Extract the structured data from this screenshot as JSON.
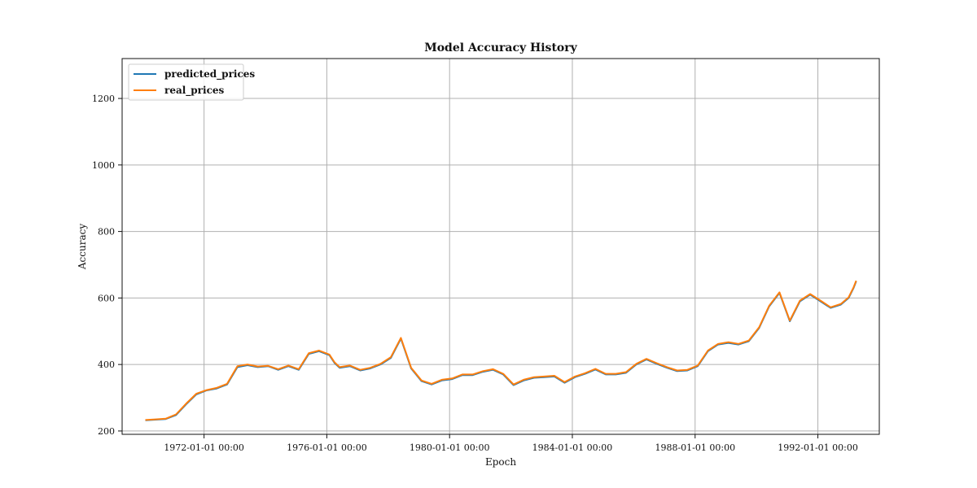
{
  "chart_data": {
    "type": "line",
    "title": "Model Accuracy History",
    "xlabel": "Epoch",
    "ylabel": "Accuracy",
    "x_axis": "date",
    "xlim": [
      "1969-05-01",
      "1994-01-01"
    ],
    "ylim": [
      190,
      1320
    ],
    "x_ticks": [
      "1972-01-01",
      "1976-01-01",
      "1980-01-01",
      "1984-01-01",
      "1988-01-01",
      "1992-01-01"
    ],
    "x_tick_labels": [
      "1972-01-01 00:00",
      "1976-01-01 00:00",
      "1980-01-01 00:00",
      "1984-01-01 00:00",
      "1988-01-01 00:00",
      "1992-01-01 00:00"
    ],
    "y_ticks": [
      200,
      400,
      600,
      800,
      1000,
      1200
    ],
    "y_tick_labels": [
      "200",
      "400",
      "600",
      "800",
      "1000",
      "1200"
    ],
    "grid": true,
    "legend_position": "top-left",
    "x": [
      "1970-02-01",
      "1970-06-01",
      "1970-10-01",
      "1971-02-01",
      "1971-06-01",
      "1971-10-01",
      "1972-02-01",
      "1972-06-01",
      "1972-10-01",
      "1973-02-01",
      "1973-06-01",
      "1973-10-01",
      "1974-02-01",
      "1974-06-01",
      "1974-10-01",
      "1975-02-01",
      "1975-06-01",
      "1975-10-01",
      "1976-02-01",
      "1976-04-01",
      "1976-06-01",
      "1976-10-01",
      "1977-02-01",
      "1977-06-01",
      "1977-10-01",
      "1978-02-01",
      "1978-06-01",
      "1978-10-01",
      "1979-02-01",
      "1979-06-01",
      "1979-10-01",
      "1980-02-01",
      "1980-06-01",
      "1980-10-01",
      "1981-02-01",
      "1981-06-01",
      "1981-10-01",
      "1982-02-01",
      "1982-06-01",
      "1982-10-01",
      "1983-02-01",
      "1983-06-01",
      "1983-10-01",
      "1984-02-01",
      "1984-06-01",
      "1984-10-01",
      "1985-02-01",
      "1985-06-01",
      "1985-10-01",
      "1986-02-01",
      "1986-06-01",
      "1986-10-01",
      "1987-02-01",
      "1987-06-01",
      "1987-10-01",
      "1988-02-01",
      "1988-06-01",
      "1988-10-01",
      "1989-02-01",
      "1989-06-01",
      "1989-10-01",
      "1990-02-01",
      "1990-06-01",
      "1990-10-01",
      "1991-02-01",
      "1991-06-01",
      "1991-10-01",
      "1992-02-01",
      "1992-06-01",
      "1992-10-01",
      "1993-01-01",
      "1993-03-01",
      "1993-04-01"
    ],
    "series": [
      {
        "name": "predicted_prices",
        "color": "#1f77b4",
        "values": [
          232,
          234,
          236,
          248,
          280,
          310,
          322,
          328,
          340,
          392,
          398,
          392,
          395,
          384,
          395,
          384,
          432,
          440,
          428,
          405,
          390,
          395,
          382,
          388,
          400,
          420,
          478,
          388,
          350,
          340,
          352,
          356,
          368,
          368,
          378,
          384,
          370,
          338,
          352,
          360,
          362,
          364,
          345,
          362,
          372,
          385,
          370,
          370,
          375,
          400,
          415,
          402,
          390,
          380,
          382,
          395,
          440,
          460,
          465,
          460,
          470,
          510,
          575,
          615,
          530,
          590,
          610,
          590,
          570,
          580,
          600,
          630,
          650
        ]
      },
      {
        "name": "real_prices",
        "color": "#ff7f0e",
        "values": [
          233,
          235,
          237,
          250,
          282,
          312,
          323,
          330,
          342,
          395,
          400,
          394,
          396,
          386,
          397,
          386,
          434,
          442,
          430,
          407,
          392,
          397,
          384,
          390,
          402,
          422,
          480,
          390,
          352,
          342,
          354,
          358,
          370,
          370,
          380,
          386,
          372,
          340,
          354,
          362,
          364,
          366,
          347,
          364,
          374,
          387,
          372,
          372,
          377,
          402,
          417,
          404,
          392,
          382,
          384,
          397,
          442,
          462,
          467,
          462,
          472,
          512,
          577,
          617,
          532,
          592,
          612,
          592,
          572,
          582,
          602,
          632,
          652
        ]
      }
    ]
  }
}
